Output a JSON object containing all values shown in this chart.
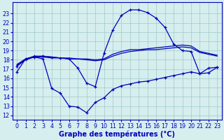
{
  "bg_color": "#d6eeee",
  "grid_color": "#a0c8c8",
  "line_color": "#0000bb",
  "xlabel": "Graphe des températures (°C)",
  "xlabel_fontsize": 7,
  "tick_fontsize": 5.8,
  "ylim": [
    11.5,
    24.2
  ],
  "xlim": [
    -0.5,
    23.5
  ],
  "yticks": [
    12,
    13,
    14,
    15,
    16,
    17,
    18,
    19,
    20,
    21,
    22,
    23
  ],
  "xticks": [
    0,
    1,
    2,
    3,
    4,
    5,
    6,
    7,
    8,
    9,
    10,
    11,
    12,
    13,
    14,
    15,
    16,
    17,
    18,
    19,
    20,
    21,
    22,
    23
  ],
  "line1_x": [
    0,
    1,
    2,
    3,
    4,
    5,
    6,
    7,
    8,
    9,
    10,
    11,
    12,
    13,
    14,
    15,
    16,
    17,
    18,
    19,
    20,
    21,
    22,
    23
  ],
  "line1_y": [
    16.7,
    18.1,
    18.4,
    18.4,
    18.3,
    18.2,
    18.1,
    17.1,
    15.5,
    15.1,
    18.7,
    21.2,
    22.8,
    23.4,
    23.4,
    23.1,
    22.5,
    21.5,
    19.7,
    19.0,
    18.9,
    16.5,
    17.1,
    17.2
  ],
  "line1_markers": true,
  "line2_x": [
    0,
    1,
    2,
    3,
    4,
    5,
    6,
    7,
    8,
    9,
    10,
    11,
    12,
    13,
    14,
    15,
    16,
    17,
    18,
    19,
    20,
    21,
    22,
    23
  ],
  "line2_y": [
    17.5,
    18.1,
    18.3,
    18.4,
    18.3,
    18.2,
    18.2,
    18.1,
    18.1,
    18.0,
    18.1,
    18.6,
    18.9,
    19.1,
    19.1,
    19.2,
    19.3,
    19.4,
    19.5,
    19.6,
    19.5,
    18.9,
    18.7,
    18.5
  ],
  "line2_markers": false,
  "line3_x": [
    0,
    1,
    2,
    3,
    4,
    5,
    6,
    7,
    8,
    9,
    10,
    11,
    12,
    13,
    14,
    15,
    16,
    17,
    18,
    19,
    20,
    21,
    22,
    23
  ],
  "line3_y": [
    17.3,
    18.0,
    18.3,
    18.1,
    14.9,
    14.4,
    13.0,
    12.9,
    12.3,
    13.4,
    13.9,
    14.8,
    15.2,
    15.4,
    15.6,
    15.7,
    15.9,
    16.1,
    16.3,
    16.5,
    16.7,
    16.5,
    16.6,
    17.2
  ],
  "line3_markers": true,
  "line4_x": [
    0,
    1,
    2,
    3,
    4,
    5,
    6,
    7,
    8,
    9,
    10,
    11,
    12,
    13,
    14,
    15,
    16,
    17,
    18,
    19,
    20,
    21,
    22,
    23
  ],
  "line4_y": [
    17.4,
    18.1,
    18.3,
    18.3,
    18.2,
    18.2,
    18.1,
    18.1,
    18.0,
    17.9,
    18.0,
    18.4,
    18.7,
    18.9,
    19.0,
    19.1,
    19.1,
    19.2,
    19.3,
    19.4,
    19.3,
    18.8,
    18.6,
    18.4
  ],
  "line4_markers": false
}
